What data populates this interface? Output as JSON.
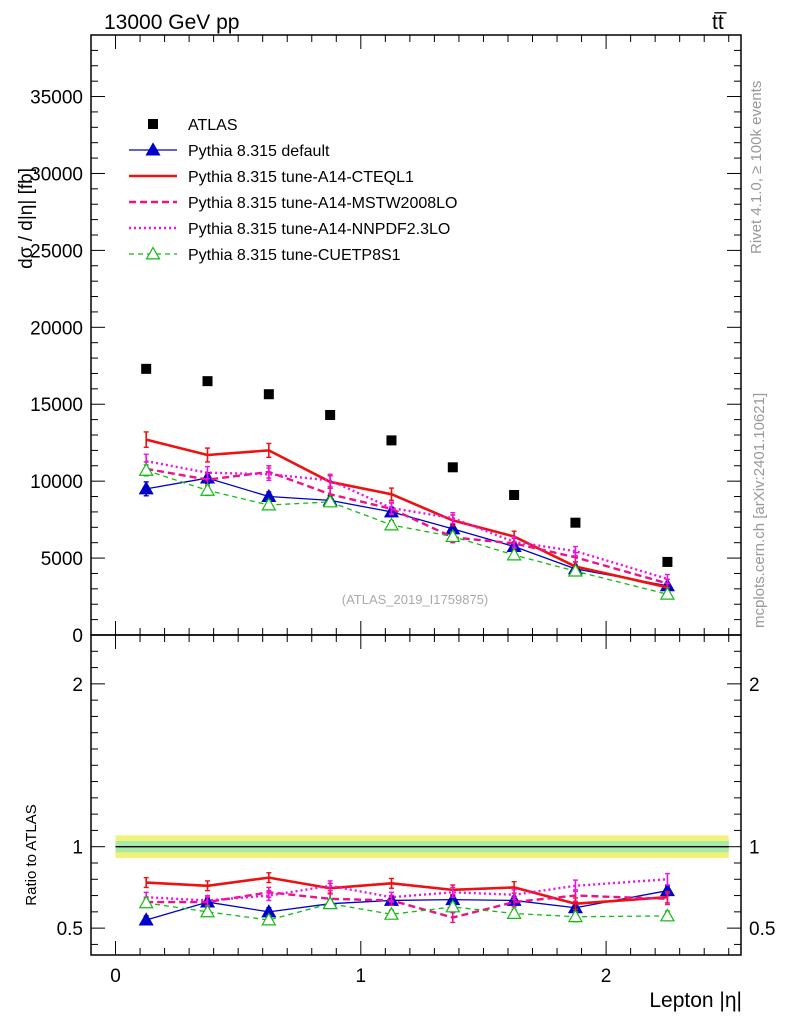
{
  "header": {
    "left": "13000 GeV pp",
    "right": "tt̅"
  },
  "side_labels": {
    "rivet": "Rivet 4.1.0, ≥ 100k events",
    "mcplots": "mcplots.cern.ch [arXiv:2401.10621]"
  },
  "analysis_tag": "(ATLAS_2019_I1759875)",
  "colors": {
    "atlas": "#000000",
    "default": "#0000cc",
    "cteql1": "#ee1111",
    "mstw": "#ee1188",
    "nnpdf": "#ee11ee",
    "cuetp": "#11bb11",
    "band_outer": "#f2f27a",
    "band_inner": "#a6eba6"
  },
  "chart_data": [
    {
      "type": "line",
      "panel": "main",
      "xlabel": "Lepton |η|",
      "ylabel": "dσ / d|η| [fb]",
      "xlim": [
        -0.1,
        2.55
      ],
      "ylim": [
        0,
        39000
      ],
      "yticks": [
        0,
        5000,
        10000,
        15000,
        20000,
        25000,
        30000,
        35000
      ],
      "ytick_labels": [
        "0",
        "5000",
        "10000",
        "15000",
        "20000",
        "25000",
        "30000",
        "35000"
      ],
      "legend_position": "top-left",
      "x": [
        0.125,
        0.375,
        0.625,
        0.875,
        1.125,
        1.375,
        1.625,
        1.875,
        2.25
      ],
      "series": [
        {
          "key": "atlas",
          "name": "ATLAS",
          "style": "square",
          "values": [
            17300,
            16500,
            15650,
            14300,
            12650,
            10900,
            9100,
            7300,
            4750
          ]
        },
        {
          "key": "default",
          "name": "Pythia 8.315 default",
          "style": "solid-thin-tri",
          "values": [
            9500,
            10200,
            9000,
            8750,
            8000,
            6900,
            5750,
            4300,
            3200
          ],
          "errors": [
            450,
            350,
            300,
            300,
            300,
            280,
            250,
            230,
            200
          ]
        },
        {
          "key": "cteql1",
          "name": "Pythia 8.315 tune-A14-CTEQL1",
          "style": "solid-thick",
          "values": [
            12700,
            11700,
            12000,
            9950,
            9150,
            7450,
            6400,
            4450,
            3100
          ],
          "errors": [
            500,
            450,
            450,
            400,
            400,
            350,
            350,
            300,
            250
          ]
        },
        {
          "key": "mstw",
          "name": "Pythia 8.315 tune-A14-MSTW2008LO",
          "style": "dashed",
          "values": [
            10800,
            10100,
            10600,
            9150,
            8200,
            6350,
            5950,
            5050,
            3350
          ],
          "errors": [
            450,
            400,
            400,
            380,
            380,
            350,
            330,
            300,
            270
          ]
        },
        {
          "key": "nnpdf",
          "name": "Pythia 8.315 tune-A14-NNPDF2.3LO",
          "style": "dotted",
          "values": [
            11300,
            10550,
            10450,
            10050,
            8250,
            7600,
            6050,
            5450,
            3650
          ],
          "errors": [
            450,
            400,
            400,
            400,
            380,
            350,
            330,
            300,
            280
          ]
        },
        {
          "key": "cuetp",
          "name": "Pythia 8.315 tune-CUETP8S1",
          "style": "dashed-thin-open-tri",
          "values": [
            10700,
            9400,
            8450,
            8650,
            7150,
            6400,
            5200,
            4150,
            2650
          ],
          "errors": [
            350,
            330,
            300,
            300,
            280,
            270,
            250,
            230,
            200
          ]
        }
      ]
    },
    {
      "type": "line",
      "panel": "ratio",
      "ylabel": "Ratio to ATLAS",
      "xlim": [
        -0.1,
        2.55
      ],
      "ylim": [
        0.335,
        2.3
      ],
      "yticks": [
        0.5,
        1,
        2
      ],
      "ytick_labels": [
        "0.5",
        "1",
        "2"
      ],
      "xticks": [
        0,
        1,
        2
      ],
      "xtick_labels": [
        "0",
        "1",
        "2"
      ],
      "x": [
        0.125,
        0.375,
        0.625,
        0.875,
        1.125,
        1.375,
        1.625,
        1.875,
        2.25
      ],
      "reference_band": {
        "center": 1.0,
        "inner": 0.035,
        "outer": 0.07
      },
      "series": [
        {
          "key": "default",
          "name": "Pythia 8.315 default",
          "values": [
            0.55,
            0.66,
            0.6,
            0.65,
            0.67,
            0.675,
            0.67,
            0.625,
            0.73
          ],
          "errors": [
            0.025,
            0.025,
            0.025,
            0.025,
            0.025,
            0.025,
            0.025,
            0.03,
            0.03
          ]
        },
        {
          "key": "cteql1",
          "name": "Pythia 8.315 tune-A14-CTEQL1",
          "values": [
            0.78,
            0.76,
            0.81,
            0.745,
            0.775,
            0.735,
            0.75,
            0.65,
            0.69
          ],
          "errors": [
            0.03,
            0.03,
            0.03,
            0.03,
            0.03,
            0.03,
            0.035,
            0.035,
            0.035
          ]
        },
        {
          "key": "mstw",
          "name": "Pythia 8.315 tune-A14-MSTW2008LO",
          "values": [
            0.66,
            0.66,
            0.72,
            0.68,
            0.67,
            0.565,
            0.66,
            0.7,
            0.68
          ],
          "errors": [
            0.03,
            0.03,
            0.03,
            0.03,
            0.03,
            0.03,
            0.03,
            0.035,
            0.035
          ]
        },
        {
          "key": "nnpdf",
          "name": "Pythia 8.315 tune-A14-NNPDF2.3LO",
          "values": [
            0.69,
            0.67,
            0.7,
            0.76,
            0.69,
            0.72,
            0.705,
            0.76,
            0.8
          ],
          "errors": [
            0.03,
            0.03,
            0.03,
            0.03,
            0.03,
            0.03,
            0.03,
            0.035,
            0.035
          ]
        },
        {
          "key": "cuetp",
          "name": "Pythia 8.315 tune-CUETP8S1",
          "values": [
            0.655,
            0.6,
            0.55,
            0.65,
            0.585,
            0.63,
            0.59,
            0.57,
            0.575
          ],
          "errors": [
            0.025,
            0.025,
            0.025,
            0.025,
            0.025,
            0.025,
            0.025,
            0.03,
            0.03
          ]
        }
      ]
    }
  ]
}
